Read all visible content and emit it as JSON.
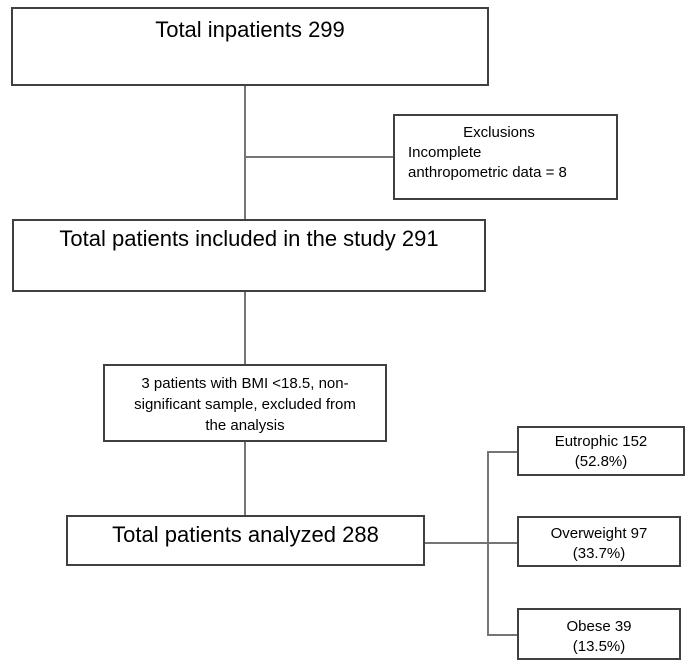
{
  "diagram": {
    "type": "flowchart",
    "colors": {
      "background": "#ffffff",
      "box_border": "#404040",
      "connector": "#757575",
      "text": "#000000"
    },
    "boxes": {
      "inpatients": {
        "label": "Total inpatients 299"
      },
      "exclusions": {
        "lines": [
          "Exclusions",
          "Incomplete",
          "anthropometric data = 8"
        ]
      },
      "included": {
        "label": "Total patients included in the study 291"
      },
      "bmi_note": {
        "lines": [
          "3 patients with BMI <18.5, non-",
          "significant sample, excluded from",
          "the analysis"
        ]
      },
      "analyzed": {
        "label": "Total patients analyzed 288"
      },
      "eutrophic": {
        "lines": [
          "Eutrophic 152",
          "(52.8%)"
        ]
      },
      "overweight": {
        "lines": [
          "Overweight 97",
          "(33.7%)"
        ]
      },
      "obese": {
        "lines": [
          "Obese 39",
          "(13.5%)"
        ]
      }
    }
  }
}
